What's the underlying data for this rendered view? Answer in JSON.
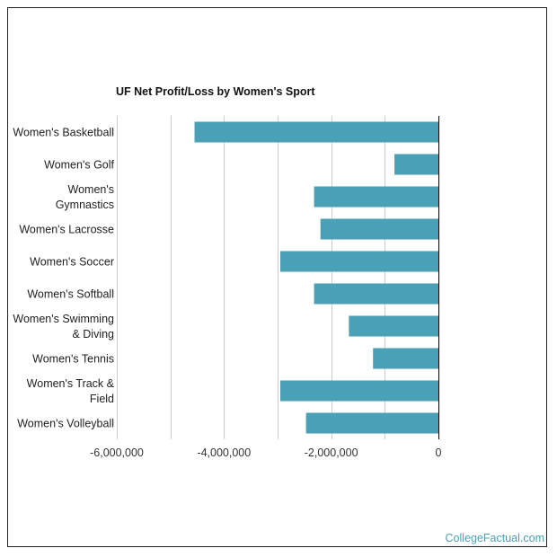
{
  "colors": {
    "bar": "#4aa0b5",
    "grid": "#cccccc",
    "axis": "#000000",
    "credit": "#4aa0b5"
  },
  "credit": "CollegeFactual.com",
  "chart_data": {
    "type": "bar",
    "orientation": "horizontal",
    "title": "UF Net Profit/Loss by Women's Sport",
    "xlabel": "",
    "ylabel": "",
    "xlim": [
      -6000000,
      0
    ],
    "grid": true,
    "x_ticks": [
      -6000000,
      -4000000,
      -2000000,
      0
    ],
    "x_tick_labels": [
      "-6,000,000",
      "-4,000,000",
      "-2,000,000",
      "0"
    ],
    "minor_grid": [
      -5000000,
      -3000000,
      -1000000
    ],
    "categories": [
      [
        "Women's Basketball"
      ],
      [
        "Women's Golf"
      ],
      [
        "Women's",
        "Gymnastics"
      ],
      [
        "Women's Lacrosse"
      ],
      [
        "Women's Soccer"
      ],
      [
        "Women's Softball"
      ],
      [
        "Women's Swimming",
        "& Diving"
      ],
      [
        "Women's Tennis"
      ],
      [
        "Women's Track &",
        "Field"
      ],
      [
        "Women's Volleyball"
      ]
    ],
    "values": [
      -4550000,
      -820000,
      -2320000,
      -2200000,
      -2950000,
      -2320000,
      -1670000,
      -1220000,
      -2950000,
      -2470000
    ]
  }
}
